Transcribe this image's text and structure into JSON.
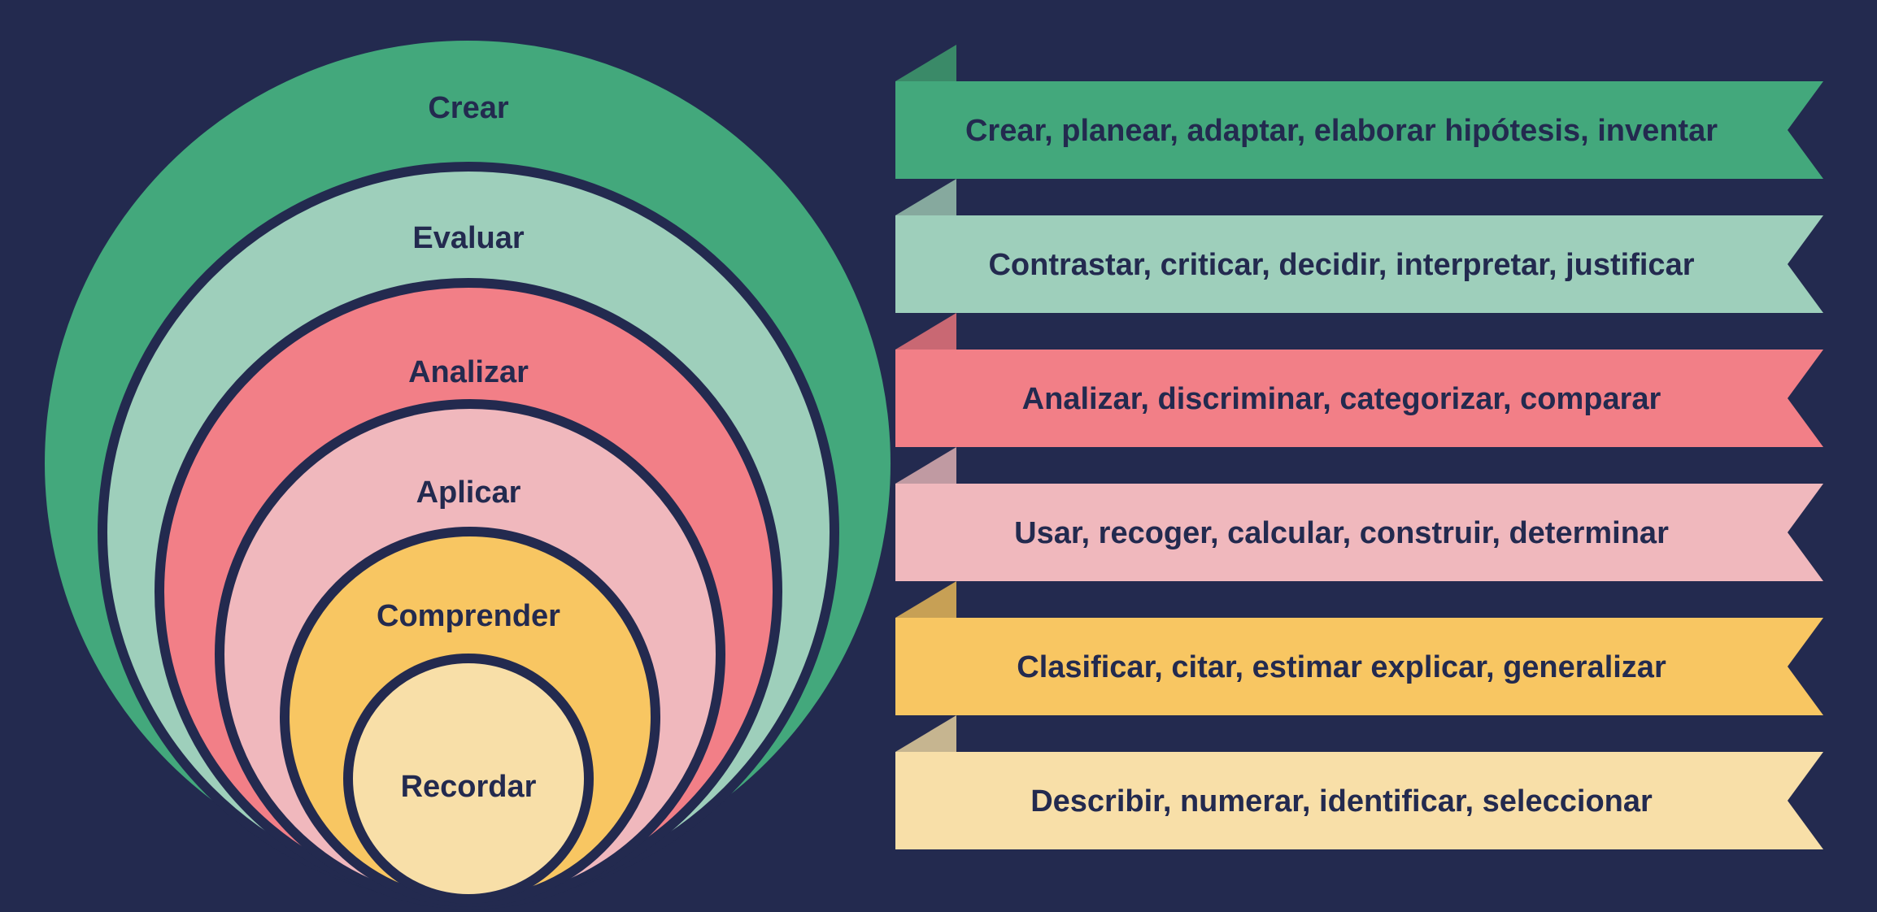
{
  "background_color": "#232a4f",
  "text_color": "#232a4f",
  "levels": [
    {
      "name": "Crear",
      "verbs": "Crear, planear, adaptar, elaborar hipótesis, inventar",
      "color": "#43a87c",
      "fold_color": "#3a8a68"
    },
    {
      "name": "Evaluar",
      "verbs": "Contrastar, criticar, decidir, interpretar, justificar",
      "color": "#9ecfbb",
      "fold_color": "#86a99e"
    },
    {
      "name": "Analizar",
      "verbs": "Analizar, discriminar, categorizar, comparar",
      "color": "#f27f87",
      "fold_color": "#c96873"
    },
    {
      "name": "Aplicar",
      "verbs": "Usar, recoger, calcular, construir, determinar",
      "color": "#f0b8bd",
      "fold_color": "#c09aa2"
    },
    {
      "name": "Comprender",
      "verbs": "Clasificar, citar, estimar explicar, generalizar",
      "color": "#f8c662",
      "fold_color": "#c7a055"
    },
    {
      "name": "Recordar",
      "verbs": "Describir, numerar, identificar, seleccionar",
      "color": "#f8dfa8",
      "fold_color": "#c6b590"
    }
  ]
}
